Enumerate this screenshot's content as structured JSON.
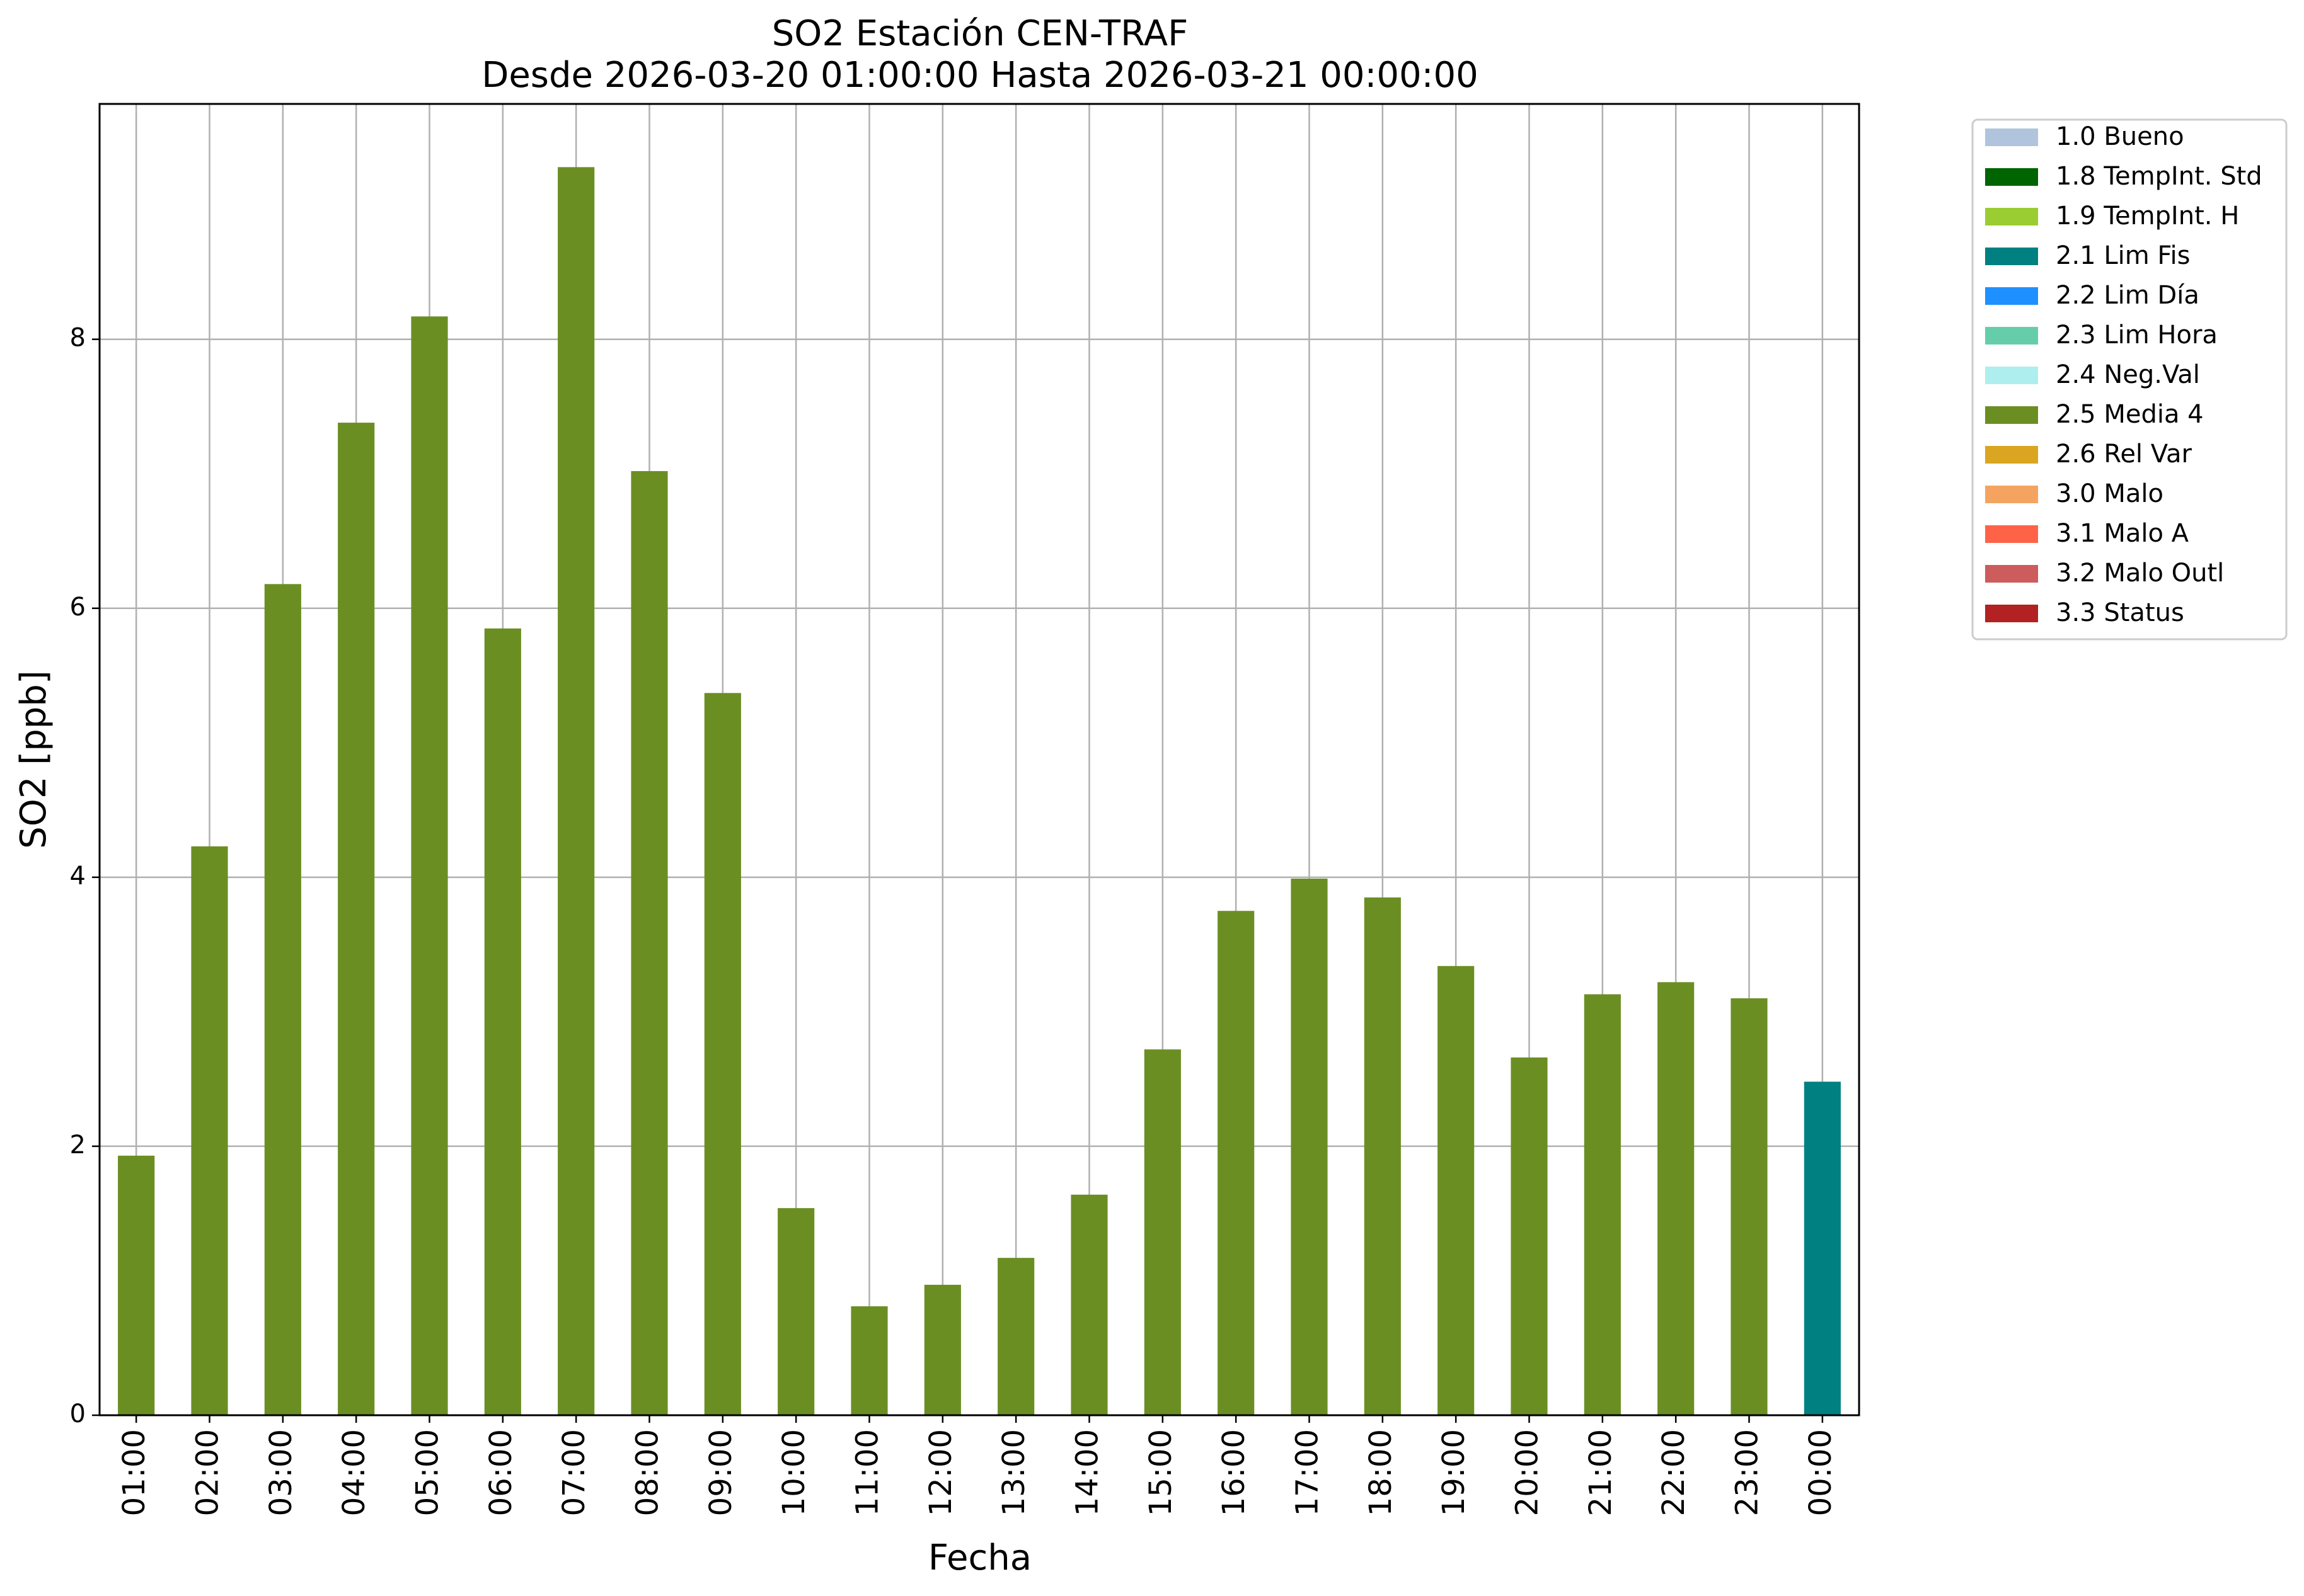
{
  "chart_data": {
    "type": "bar",
    "title": "SO2 Estación CEN-TRAF",
    "subtitle": "Desde 2026-03-20 01:00:00 Hasta 2026-03-21 00:00:00",
    "xlabel": "Fecha",
    "ylabel": "SO2 [ppb]",
    "ylim": [
      0,
      9.75
    ],
    "yticks": [
      0,
      2,
      4,
      6,
      8
    ],
    "grid": true,
    "legend_placement": "outside-top-right",
    "categories": [
      "01:00",
      "02:00",
      "03:00",
      "04:00",
      "05:00",
      "06:00",
      "07:00",
      "08:00",
      "09:00",
      "10:00",
      "11:00",
      "12:00",
      "13:00",
      "14:00",
      "15:00",
      "16:00",
      "17:00",
      "18:00",
      "19:00",
      "20:00",
      "21:00",
      "22:00",
      "23:00",
      "00:00"
    ],
    "values": [
      1.93,
      4.23,
      6.18,
      7.38,
      8.17,
      5.85,
      9.28,
      7.02,
      5.37,
      1.54,
      0.81,
      0.97,
      1.17,
      1.64,
      2.72,
      3.75,
      3.99,
      3.85,
      3.34,
      2.66,
      3.13,
      3.22,
      3.1,
      2.48
    ],
    "flags": [
      "2.5",
      "2.5",
      "2.5",
      "2.5",
      "2.5",
      "2.5",
      "2.5",
      "2.5",
      "2.5",
      "2.5",
      "2.5",
      "2.5",
      "2.5",
      "2.5",
      "2.5",
      "2.5",
      "2.5",
      "2.5",
      "2.5",
      "2.5",
      "2.5",
      "2.5",
      "2.5",
      "2.1"
    ],
    "legend": [
      {
        "code": "1.0",
        "label": "1.0 Bueno",
        "color": "#b0c4de"
      },
      {
        "code": "1.8",
        "label": "1.8 TempInt. Std",
        "color": "#006400"
      },
      {
        "code": "1.9",
        "label": "1.9 TempInt. H",
        "color": "#9acd32"
      },
      {
        "code": "2.1",
        "label": "2.1 Lim Fis",
        "color": "#008080"
      },
      {
        "code": "2.2",
        "label": "2.2 Lim Día",
        "color": "#1e90ff"
      },
      {
        "code": "2.3",
        "label": "2.3 Lim Hora",
        "color": "#66cdaa"
      },
      {
        "code": "2.4",
        "label": "2.4 Neg.Val",
        "color": "#afeeee"
      },
      {
        "code": "2.5",
        "label": "2.5 Media 4",
        "color": "#6b8e23"
      },
      {
        "code": "2.6",
        "label": "2.6 Rel Var",
        "color": "#daa520"
      },
      {
        "code": "3.0",
        "label": "3.0 Malo",
        "color": "#f4a460"
      },
      {
        "code": "3.1",
        "label": "3.1 Malo A",
        "color": "#ff6347"
      },
      {
        "code": "3.2",
        "label": "3.2 Malo Outl",
        "color": "#cd5c5c"
      },
      {
        "code": "3.3",
        "label": "3.3 Status",
        "color": "#b22222"
      }
    ]
  }
}
